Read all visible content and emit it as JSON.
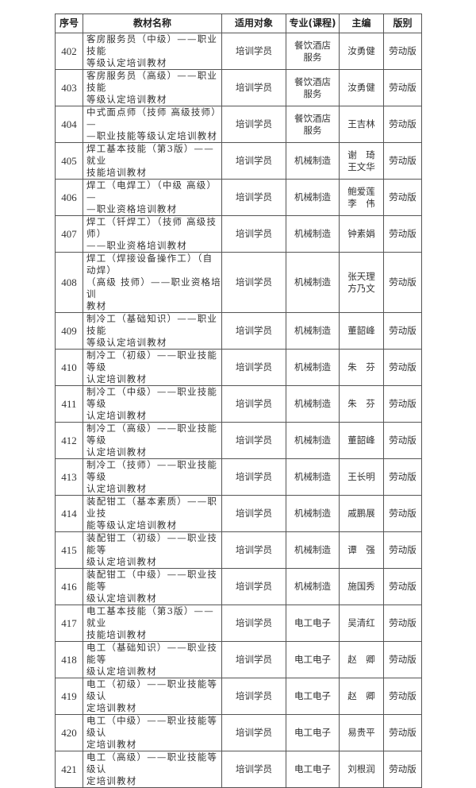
{
  "headers": [
    "序号",
    "教材名称",
    "适用对象",
    "专业(课程)",
    "主编",
    "版别"
  ],
  "rows": [
    {
      "no": "402",
      "name": "客房服务员（中级）——职业技能\n等级认定培训教材",
      "target": "培训学员",
      "major": "餐饮酒店\n服务",
      "editor": "汝勇健",
      "edition": "劳动版"
    },
    {
      "no": "403",
      "name": "客房服务员（高级）——职业技能\n等级认定培训教材",
      "target": "培训学员",
      "major": "餐饮酒店\n服务",
      "editor": "汝勇健",
      "edition": "劳动版"
    },
    {
      "no": "404",
      "name": "中式面点师（技师 高级技师）—\n—职业技能等级认定培训教材",
      "target": "培训学员",
      "major": "餐饮酒店\n服务",
      "editor": "王吉林",
      "edition": "劳动版"
    },
    {
      "no": "405",
      "name": "焊工基本技能（第3版）——就业\n技能培训教材",
      "target": "培训学员",
      "major": "机械制造",
      "editor": "谢　琦\n王文华",
      "edition": "劳动版"
    },
    {
      "no": "406",
      "name": "焊工（电焊工）（中级 高级）—\n—职业资格培训教材",
      "target": "培训学员",
      "major": "机械制造",
      "editor": "鲍爱莲\n李　伟",
      "edition": "劳动版"
    },
    {
      "no": "407",
      "name": "焊工（钎焊工）（技师 高级技师）\n——职业资格培训教材",
      "target": "培训学员",
      "major": "机械制造",
      "editor": "钟素娟",
      "edition": "劳动版"
    },
    {
      "no": "408",
      "name": "焊工（焊接设备操作工）（自动焊）\n（高级 技师）——职业资格培训\n教材",
      "target": "培训学员",
      "major": "机械制造",
      "editor": "张天理\n方乃文",
      "edition": "劳动版"
    },
    {
      "no": "409",
      "name": "制冷工（基础知识）——职业技能\n等级认定培训教材",
      "target": "培训学员",
      "major": "机械制造",
      "editor": "董韶峰",
      "edition": "劳动版"
    },
    {
      "no": "410",
      "name": "制冷工（初级）——职业技能等级\n认定培训教材",
      "target": "培训学员",
      "major": "机械制造",
      "editor": "朱　芬",
      "edition": "劳动版"
    },
    {
      "no": "411",
      "name": "制冷工（中级）——职业技能等级\n认定培训教材",
      "target": "培训学员",
      "major": "机械制造",
      "editor": "朱　芬",
      "edition": "劳动版"
    },
    {
      "no": "412",
      "name": "制冷工（高级）——职业技能等级\n认定培训教材",
      "target": "培训学员",
      "major": "机械制造",
      "editor": "董韶峰",
      "edition": "劳动版"
    },
    {
      "no": "413",
      "name": "制冷工（技师）——职业技能等级\n认定培训教材",
      "target": "培训学员",
      "major": "机械制造",
      "editor": "王长明",
      "edition": "劳动版"
    },
    {
      "no": "414",
      "name": "装配钳工（基本素质）——职业技\n能等级认定培训教材",
      "target": "培训学员",
      "major": "机械制造",
      "editor": "戚鹏展",
      "edition": "劳动版"
    },
    {
      "no": "415",
      "name": "装配钳工（初级）——职业技能等\n级认定培训教材",
      "target": "培训学员",
      "major": "机械制造",
      "editor": "谭　强",
      "edition": "劳动版"
    },
    {
      "no": "416",
      "name": "装配钳工（中级）——职业技能等\n级认定培训教材",
      "target": "培训学员",
      "major": "机械制造",
      "editor": "施国秀",
      "edition": "劳动版"
    },
    {
      "no": "417",
      "name": "电工基本技能（第3版）——就业\n技能培训教材",
      "target": "培训学员",
      "major": "电工电子",
      "editor": "吴清红",
      "edition": "劳动版"
    },
    {
      "no": "418",
      "name": "电工（基础知识）——职业技能等\n级认定培训教材",
      "target": "培训学员",
      "major": "电工电子",
      "editor": "赵　卿",
      "edition": "劳动版"
    },
    {
      "no": "419",
      "name": "电工（初级）——职业技能等级认\n定培训教材",
      "target": "培训学员",
      "major": "电工电子",
      "editor": "赵　卿",
      "edition": "劳动版"
    },
    {
      "no": "420",
      "name": "电工（中级）——职业技能等级认\n定培训教材",
      "target": "培训学员",
      "major": "电工电子",
      "editor": "易贵平",
      "edition": "劳动版"
    },
    {
      "no": "421",
      "name": "电工（高级）——职业技能等级认\n定培训教材",
      "target": "培训学员",
      "major": "电工电子",
      "editor": "刘根润",
      "edition": "劳动版"
    }
  ]
}
